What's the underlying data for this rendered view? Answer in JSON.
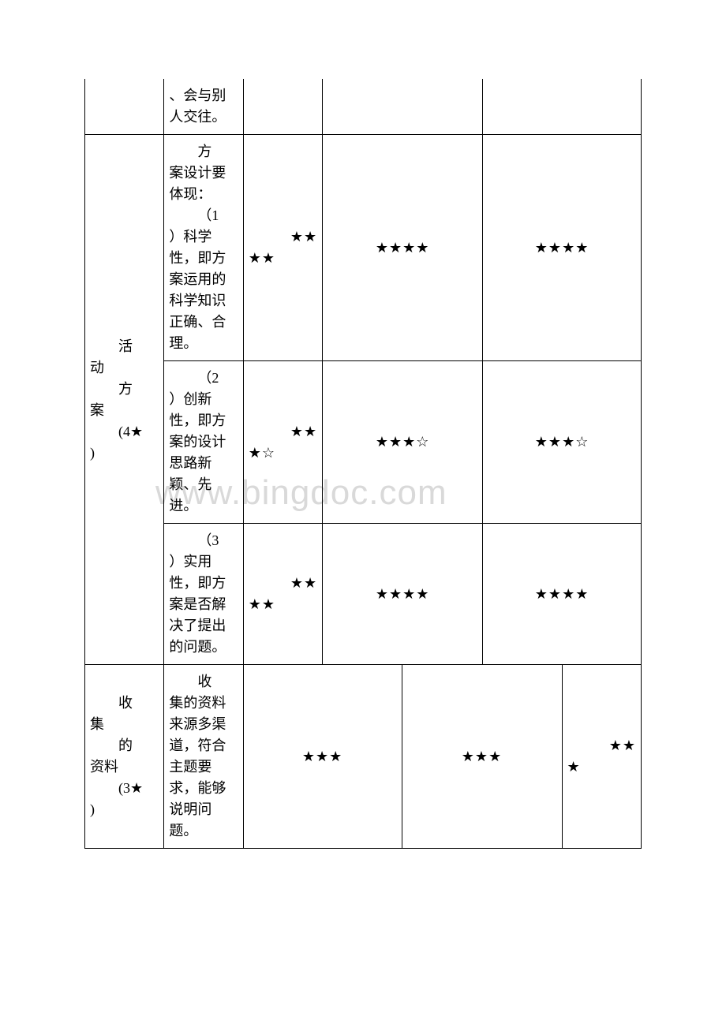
{
  "watermark": "www.bingdoc.com",
  "table": {
    "background_color": "#ffffff",
    "border_color": "#000000",
    "text_color": "#000000",
    "font_size": 18,
    "star_filled": "★",
    "star_empty": "☆",
    "rows": {
      "row0": {
        "desc": "、会与别人交往。"
      },
      "row_plan": {
        "category_line1": "活",
        "category_line2": "动",
        "category_line3": "方",
        "category_line4": "案",
        "category_line5": "(4★",
        "category_line6": ")",
        "sub1": {
          "desc_line1": "方",
          "desc_line2": "案设计要体现：",
          "desc_line3": "（1",
          "desc_line4": "）科学性，即方案运用的科学知识正确、合理。",
          "rating1": "★★★★",
          "rating2": "★★★★",
          "rating3": "★★★★"
        },
        "sub2": {
          "desc_line1": "（2",
          "desc_line2": "）创新性，即方案的设计思路新颖、先进。",
          "rating1": "★★★☆",
          "rating2": "★★★☆",
          "rating3": "★★★☆"
        },
        "sub3": {
          "desc_line1": "（3",
          "desc_line2": "）实用性，即方案是否解决了提出的问题。",
          "rating1": "★★★★",
          "rating2": "★★★★",
          "rating3": "★★★★"
        }
      },
      "row_collect": {
        "category_line1": "收",
        "category_line2": "集",
        "category_line3": "的",
        "category_line4": "资料",
        "category_line5": "(3★",
        "category_line6": ")",
        "desc_line1": "收",
        "desc_line2": "集的资料来源多渠道，符合主题要求，能够说明问题。",
        "rating1": "★★★",
        "rating2": "★★★",
        "rating3_a": "★★",
        "rating3_b": "★"
      }
    }
  }
}
